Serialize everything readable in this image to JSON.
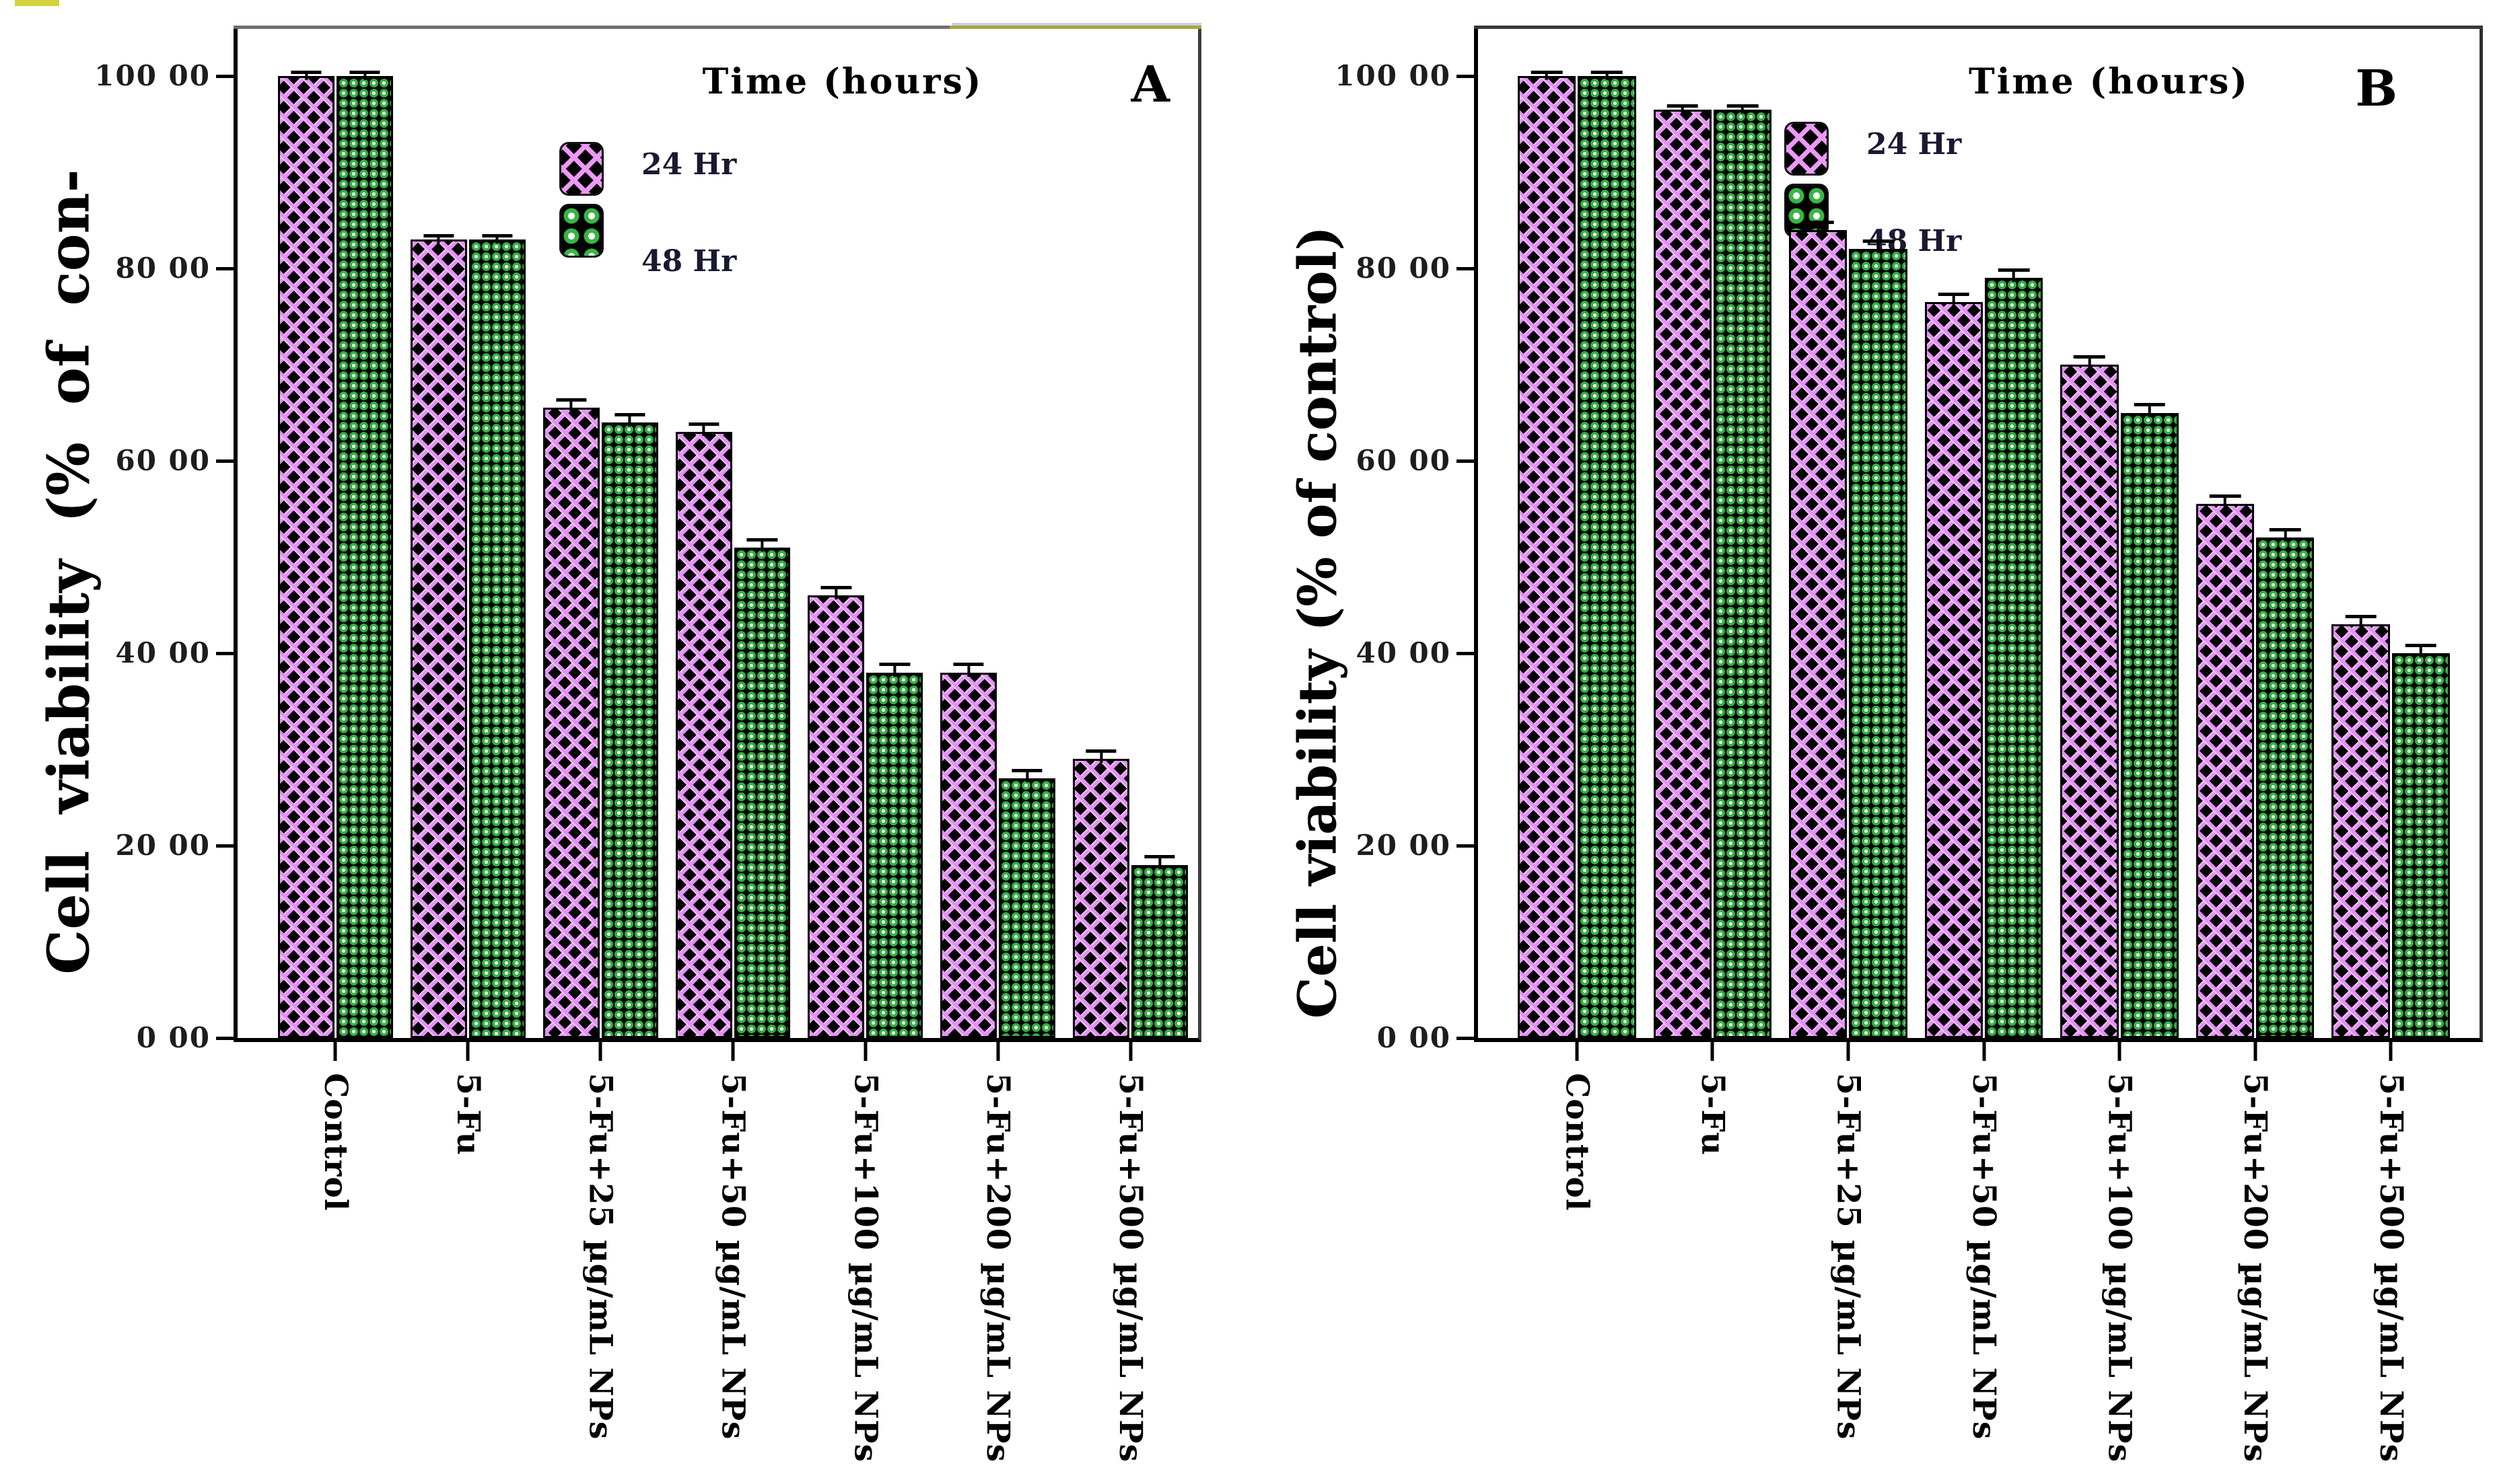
{
  "figure": {
    "background": "#ffffff",
    "accent_colors": {
      "series_24hr": "#e292f5",
      "series_48hr": "#35b045",
      "frame_olive": "#a6a63d"
    }
  },
  "chart_data": [
    {
      "type": "bar",
      "panel_label": "A",
      "title": "Time (hours)",
      "ylabel": "Cell viability (% of con-",
      "xlabel": "",
      "ylim": [
        0,
        100
      ],
      "ytick_values": [
        0,
        20,
        40,
        60,
        80,
        100
      ],
      "ytick_labels": [
        "0 00",
        "20 00",
        "40 00",
        "60 00",
        "80 00",
        "100 00"
      ],
      "grid": false,
      "legend_position": "upper-left-inside",
      "categories": [
        "Control",
        "5-Fu",
        "5-Fu+25 µg/mL NPs",
        "5-Fu+50 µg/mL NPs",
        "5-Fu+100 µg/mL NPs",
        "5-Fu+200 µg/mL NPs",
        "5-Fu+500 µg/mL NPs"
      ],
      "series": [
        {
          "name": "24 Hr",
          "pattern": "purple-crosshatch",
          "color": "#e292f5",
          "values": [
            100,
            83,
            65.5,
            63,
            46,
            38,
            29
          ],
          "errors": [
            0.8,
            0.8,
            1.2,
            1.2,
            1.2,
            1.2,
            1.2
          ]
        },
        {
          "name": "48 Hr",
          "pattern": "green-dots",
          "color": "#35b045",
          "values": [
            100,
            83,
            64,
            51,
            38,
            27,
            18
          ],
          "errors": [
            0.8,
            0.8,
            1.2,
            1.2,
            1.2,
            1.2,
            1.2
          ]
        }
      ]
    },
    {
      "type": "bar",
      "panel_label": "B",
      "title": "Time (hours)",
      "ylabel": "Cell viability (% of control)",
      "xlabel": "",
      "ylim": [
        0,
        100
      ],
      "ytick_values": [
        0,
        20,
        40,
        60,
        80,
        100
      ],
      "ytick_labels": [
        "0 00",
        "20 00",
        "40 00",
        "60 00",
        "80 00",
        "100 00"
      ],
      "grid": false,
      "legend_position": "upper-left-inside",
      "categories": [
        "Control",
        "5-Fu",
        "5-Fu+25 µg/mL NPs",
        "5-Fu+50 µg/mL NPs",
        "5-Fu+100 µg/mL NPs",
        "5-Fu+200 µg/mL NPs",
        "5-Fu+500 µg/mL NPs"
      ],
      "series": [
        {
          "name": "24 Hr",
          "pattern": "purple-crosshatch",
          "color": "#e292f5",
          "values": [
            100,
            96.5,
            84,
            76.5,
            70,
            55.5,
            43
          ],
          "errors": [
            0.8,
            0.8,
            1.2,
            1.2,
            1.2,
            1.2,
            1.2
          ]
        },
        {
          "name": "48 Hr",
          "pattern": "green-dots",
          "color": "#35b045",
          "values": [
            100,
            96.5,
            82,
            79,
            65,
            52,
            40
          ],
          "errors": [
            0.8,
            0.8,
            1.2,
            1.2,
            1.2,
            1.2,
            1.2
          ]
        }
      ]
    }
  ]
}
